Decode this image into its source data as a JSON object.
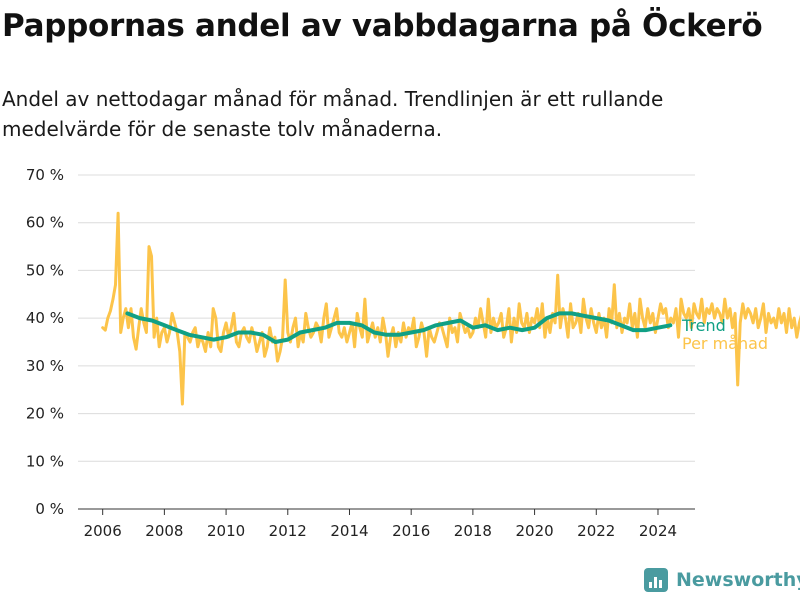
{
  "title": "Pappornas andel av vabbdagarna på Öckerö",
  "subtitle": "Andel av nettodagar månad för månad. Trendlinjen är ett rullande medelvärde för de senaste tolv månaderna.",
  "brand": {
    "name": "Newsworthy",
    "icon": "bar-chart-logo-icon",
    "color": "#4a9ba0"
  },
  "chart_data": {
    "type": "line",
    "title": "Pappornas andel av vabbdagarna på Öckerö",
    "subtitle": "Andel av nettodagar månad för månad. Trendlinjen är ett rullande medelvärde för de senaste tolv månaderna.",
    "xlabel": "",
    "ylabel": "",
    "xlim": [
      2005.2,
      2025.2
    ],
    "ylim": [
      0,
      70
    ],
    "x_ticks": [
      "2006",
      "2008",
      "2010",
      "2012",
      "2014",
      "2016",
      "2018",
      "2020",
      "2022",
      "2024"
    ],
    "y_ticks": [
      "0 %",
      "10 %",
      "20 %",
      "30 %",
      "40 %",
      "50 %",
      "60 %",
      "70 %"
    ],
    "grid": "horizontal",
    "legend": "end-of-line labels, right",
    "series": [
      {
        "name": "Per månad",
        "color": "#fcc44a",
        "x_start": "2006-01",
        "frequency": "monthly",
        "values": [
          38,
          37.5,
          40,
          41.5,
          44,
          47,
          62,
          37,
          40,
          42,
          38,
          42,
          36,
          33.5,
          38,
          42,
          39,
          37,
          55,
          53,
          36,
          40,
          34,
          37,
          38,
          35,
          37,
          41,
          39,
          37,
          33,
          22,
          37,
          36,
          35,
          37,
          38,
          34,
          36,
          35,
          33,
          37,
          34,
          42,
          40,
          34,
          33,
          37,
          39,
          36,
          38,
          41,
          35,
          34,
          37,
          38,
          36,
          35,
          38,
          36,
          33,
          35,
          37,
          32,
          34,
          38,
          35,
          36,
          31,
          33,
          36,
          48,
          37,
          35,
          38,
          40,
          34,
          37,
          35,
          41,
          38,
          36,
          37,
          39,
          38,
          35,
          40,
          43,
          36,
          38,
          40,
          42,
          37,
          36,
          38,
          35,
          37,
          39,
          34,
          41,
          38,
          36,
          44,
          35,
          37,
          39,
          36,
          38,
          35,
          40,
          37,
          32,
          36,
          38,
          34,
          37,
          35,
          39,
          36,
          38,
          37,
          40,
          34,
          36,
          39,
          37,
          32,
          38,
          36,
          35,
          37,
          39,
          38,
          36,
          34,
          40,
          37,
          38,
          35,
          41,
          39,
          37,
          38,
          36,
          37,
          40,
          38,
          42,
          39,
          36,
          44,
          37,
          40,
          38,
          39,
          41,
          36,
          38,
          42,
          35,
          40,
          37,
          43,
          39,
          38,
          41,
          37,
          40,
          39,
          42,
          38,
          43,
          36,
          40,
          37,
          41,
          39,
          49,
          38,
          42,
          40,
          36,
          43,
          38,
          39,
          41,
          37,
          44,
          40,
          38,
          42,
          39,
          37,
          41,
          38,
          40,
          36,
          42,
          39,
          47,
          38,
          41,
          37,
          40,
          39,
          43,
          38,
          41,
          36,
          44,
          40,
          38,
          42,
          39,
          41,
          37,
          40,
          43,
          41,
          42,
          38,
          40,
          39,
          42,
          36,
          44,
          41,
          40,
          42,
          38,
          43,
          41,
          40,
          44,
          39,
          42,
          41,
          43,
          40,
          42,
          41,
          39,
          44,
          40,
          42,
          38,
          41,
          26,
          39,
          43,
          40,
          42,
          41,
          39,
          42,
          38,
          40,
          43,
          37,
          41,
          39,
          40,
          38,
          42,
          39,
          41,
          37,
          42,
          38,
          40,
          36,
          39,
          41,
          37,
          40,
          38,
          36,
          39,
          30,
          41,
          38,
          40,
          37,
          43,
          39,
          41,
          37,
          39,
          40,
          37,
          41,
          36,
          34
        ],
        "notes_on_shape": "monthly share of net days"
      },
      {
        "name": "Trend",
        "color": "#10a085",
        "x": [
          2006.8,
          2007.2,
          2007.6,
          2008.0,
          2008.4,
          2008.8,
          2009.2,
          2009.6,
          2010.0,
          2010.4,
          2010.8,
          2011.2,
          2011.6,
          2012.0,
          2012.4,
          2012.8,
          2013.2,
          2013.6,
          2014.0,
          2014.4,
          2014.8,
          2015.2,
          2015.6,
          2016.0,
          2016.4,
          2016.8,
          2017.2,
          2017.6,
          2018.0,
          2018.4,
          2018.8,
          2019.2,
          2019.6,
          2020.0,
          2020.4,
          2020.8,
          2021.2,
          2021.6,
          2022.0,
          2022.4,
          2022.8,
          2023.2,
          2023.6,
          2024.0,
          2024.4
        ],
        "values": [
          41,
          40,
          39.5,
          38.5,
          37.5,
          36.5,
          36,
          35.5,
          36,
          37,
          37,
          36.5,
          35,
          35.5,
          37,
          37.5,
          38,
          39,
          39,
          38.5,
          37,
          36.5,
          36.5,
          37,
          37.5,
          38.5,
          39,
          39.5,
          38,
          38.5,
          37.5,
          38,
          37.5,
          38,
          40,
          41,
          41,
          40.5,
          40,
          39.5,
          38.5,
          37.5,
          37.5,
          38,
          38.5
        ]
      }
    ]
  }
}
